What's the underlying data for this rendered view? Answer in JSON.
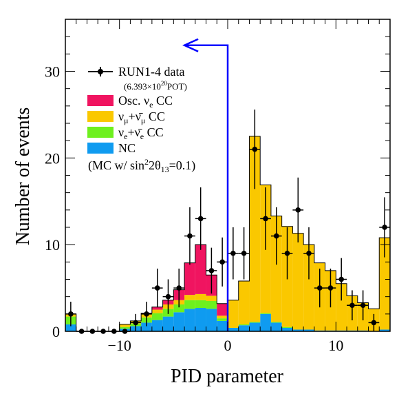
{
  "chart_data": {
    "type": "histogram",
    "xlabel": "PID parameter",
    "ylabel": "Number of events",
    "xlim": [
      -15,
      15
    ],
    "ylim": [
      0,
      36
    ],
    "x_ticks": [
      -10,
      0,
      10
    ],
    "y_ticks": [
      0,
      10,
      20,
      30
    ],
    "bin_edges": [
      -15,
      -14,
      -13,
      -12,
      -11,
      -10,
      -9,
      -8,
      -7,
      -6,
      -5,
      -4,
      -3,
      -2,
      -1,
      0,
      1,
      2,
      3,
      4,
      5,
      6,
      7,
      8,
      9,
      10,
      11,
      12,
      13,
      14,
      15
    ],
    "stack": [
      {
        "name": "NC",
        "color": "#0f9bf0",
        "values": [
          0.8,
          0,
          0,
          0,
          0,
          0.3,
          0.6,
          1.0,
          1.3,
          1.7,
          2.2,
          2.6,
          2.7,
          2.6,
          1.2,
          0.4,
          0.7,
          1.0,
          2.0,
          1.0,
          0.4,
          0.2,
          0.2,
          0.1,
          0.1,
          0.1,
          0.1,
          0.1,
          0,
          0.2
        ]
      },
      {
        "name": "ν_e+ν̄_e CC",
        "color": "#6ef01e",
        "values": [
          0.9,
          0,
          0,
          0,
          0,
          0.2,
          0.3,
          0.6,
          0.8,
          0.9,
          0.9,
          1.0,
          0.9,
          0.9,
          0.3,
          0,
          0.1,
          0.1,
          0.1,
          0.1,
          0.1,
          0,
          0,
          0,
          0,
          0,
          0,
          0,
          0,
          0
        ]
      },
      {
        "name": "ν_μ+ν̄_μ CC",
        "color": "#fac800",
        "values": [
          0.3,
          0,
          0,
          0,
          0,
          0.3,
          0.3,
          0.4,
          0.4,
          0.5,
          0.5,
          0.6,
          0.7,
          0.6,
          0.3,
          3.2,
          5.0,
          21.4,
          14.8,
          12.2,
          11.6,
          11.1,
          9.8,
          7.8,
          6.9,
          5.4,
          4.0,
          3.2,
          2.6,
          10.6
        ]
      },
      {
        "name": "Osc. ν_e CC",
        "color": "#f01460",
        "values": [
          0,
          0,
          0,
          0,
          0,
          0,
          0,
          0.1,
          0.3,
          0.5,
          1.2,
          3.7,
          5.7,
          2.4,
          1.4,
          0,
          0,
          0,
          0,
          0,
          0,
          0,
          0,
          0,
          0,
          0,
          0,
          0,
          0,
          0
        ]
      }
    ],
    "data_series": {
      "name": "RUN1-4 data",
      "x": [
        -14.5,
        -13.5,
        -12.5,
        -11.5,
        -10.5,
        -9.5,
        -8.5,
        -7.5,
        -6.5,
        -5.5,
        -4.5,
        -3.5,
        -2.5,
        -1.5,
        -0.5,
        0.5,
        1.5,
        2.5,
        3.5,
        4.5,
        5.5,
        6.5,
        7.5,
        8.5,
        9.5,
        10.5,
        11.5,
        12.5,
        13.5,
        14.5
      ],
      "y": [
        2,
        0,
        0,
        0,
        0,
        0,
        1,
        2,
        5,
        4,
        5,
        11,
        13,
        7,
        8,
        9,
        9,
        21,
        13,
        11,
        9,
        14,
        9,
        5,
        5,
        6,
        3,
        3,
        1,
        12
      ]
    },
    "annotation_arrow": {
      "from_x": 0,
      "to_x": -4,
      "y": 33,
      "color": "#0000ff"
    }
  },
  "legend": {
    "data_label": "RUN1-4 data",
    "pot_label": "(6.393×10",
    "pot_exp": "20",
    "pot_unit": "POT)",
    "osc_label": "Osc. ν",
    "osc_sub": "e",
    "osc_tail": " CC",
    "numu_label": "ν",
    "numu_sub": "μ",
    "numu_plus": "+ν̄",
    "numu_sub2": "μ",
    "numu_tail": " CC",
    "nue_label": "ν",
    "nue_sub": "e",
    "nue_plus": "+ν̄",
    "nue_sub2": "e",
    "nue_tail": " CC",
    "nc_label": "NC",
    "mc_label": "(MC w/ sin",
    "mc_exp": "2",
    "mc_mid": "2θ",
    "mc_sub": "13",
    "mc_tail": "=0.1)"
  }
}
